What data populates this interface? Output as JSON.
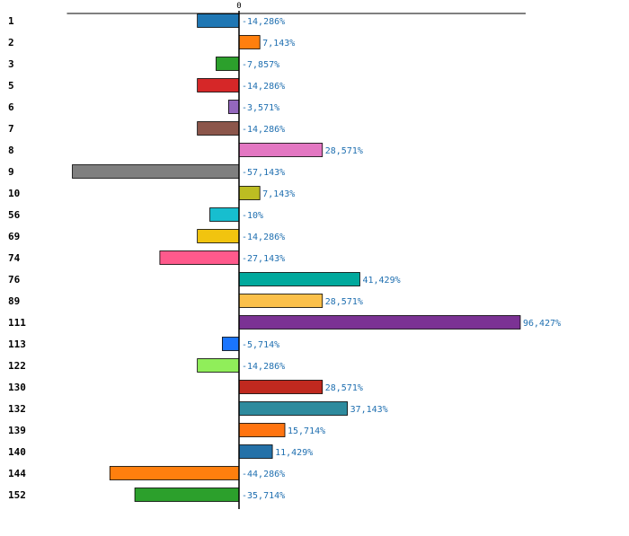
{
  "chart_data": {
    "type": "bar",
    "orientation": "horizontal",
    "zero_label": "0",
    "categories": [
      "1",
      "2",
      "3",
      "5",
      "6",
      "7",
      "8",
      "9",
      "10",
      "56",
      "69",
      "74",
      "76",
      "89",
      "111",
      "113",
      "122",
      "130",
      "132",
      "139",
      "140",
      "144",
      "152"
    ],
    "values": [
      -14.286,
      7.143,
      -7.857,
      -14.286,
      -3.571,
      -14.286,
      28.571,
      -57.143,
      7.143,
      -10,
      -14.286,
      -27.143,
      41.429,
      28.571,
      96.427,
      -5.714,
      -14.286,
      28.571,
      37.143,
      15.714,
      11.429,
      -44.286,
      -35.714
    ],
    "value_labels": [
      "-14,286%",
      "7,143%",
      "-7,857%",
      "-14,286%",
      "-3,571%",
      "-14,286%",
      "28,571%",
      "-57,143%",
      "7,143%",
      "-10%",
      "-14,286%",
      "-27,143%",
      "41,429%",
      "28,571%",
      "96,427%",
      "-5,714%",
      "-14,286%",
      "28,571%",
      "37,143%",
      "15,714%",
      "11,429%",
      "-44,286%",
      "-35,714%"
    ],
    "colors": [
      "#1f77b4",
      "#ff7f0e",
      "#2ca02c",
      "#d62728",
      "#9467bd",
      "#8c564b",
      "#e377c2",
      "#7f7f7f",
      "#bcbd22",
      "#17becf",
      "#f1c40f",
      "#ff5a8c",
      "#00a99d",
      "#fbc04a",
      "#7b3294",
      "#1a75ff",
      "#90ee5a",
      "#c0291f",
      "#2e8b9e",
      "#ff7410",
      "#2471a8",
      "#ff7f0e",
      "#2ca02c"
    ],
    "xlim": [
      -59,
      100
    ],
    "title": "",
    "xlabel": "",
    "ylabel": ""
  }
}
